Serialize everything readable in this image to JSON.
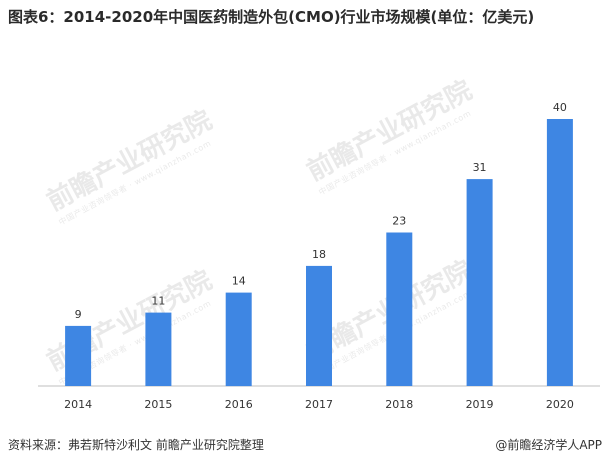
{
  "title": "图表6：2014-2020年中国医药制造外包(CMO)行业市场规模(单位：亿美元)",
  "footer": {
    "source": "资料来源：弗若斯特沙利文 前瞻产业研究院整理",
    "brand": "@前瞻经济学人APP"
  },
  "watermark": {
    "text": "前瞻产业研究院",
    "sub": "中国产业咨询领导者 · www.qianzhan.com"
  },
  "colors": {
    "bar": "#3e86e3",
    "axis": "#bfbfbf"
  },
  "chart_data": {
    "type": "bar",
    "categories": [
      "2014",
      "2015",
      "2016",
      "2017",
      "2018",
      "2019",
      "2020"
    ],
    "values": [
      9,
      11,
      14,
      18,
      23,
      31,
      40
    ],
    "title": "图表6：2014-2020年中国医药制造外包(CMO)行业市场规模(单位：亿美元)",
    "xlabel": "",
    "ylabel": "",
    "ylim": [
      0,
      40
    ],
    "grid": false,
    "legend": "none"
  }
}
